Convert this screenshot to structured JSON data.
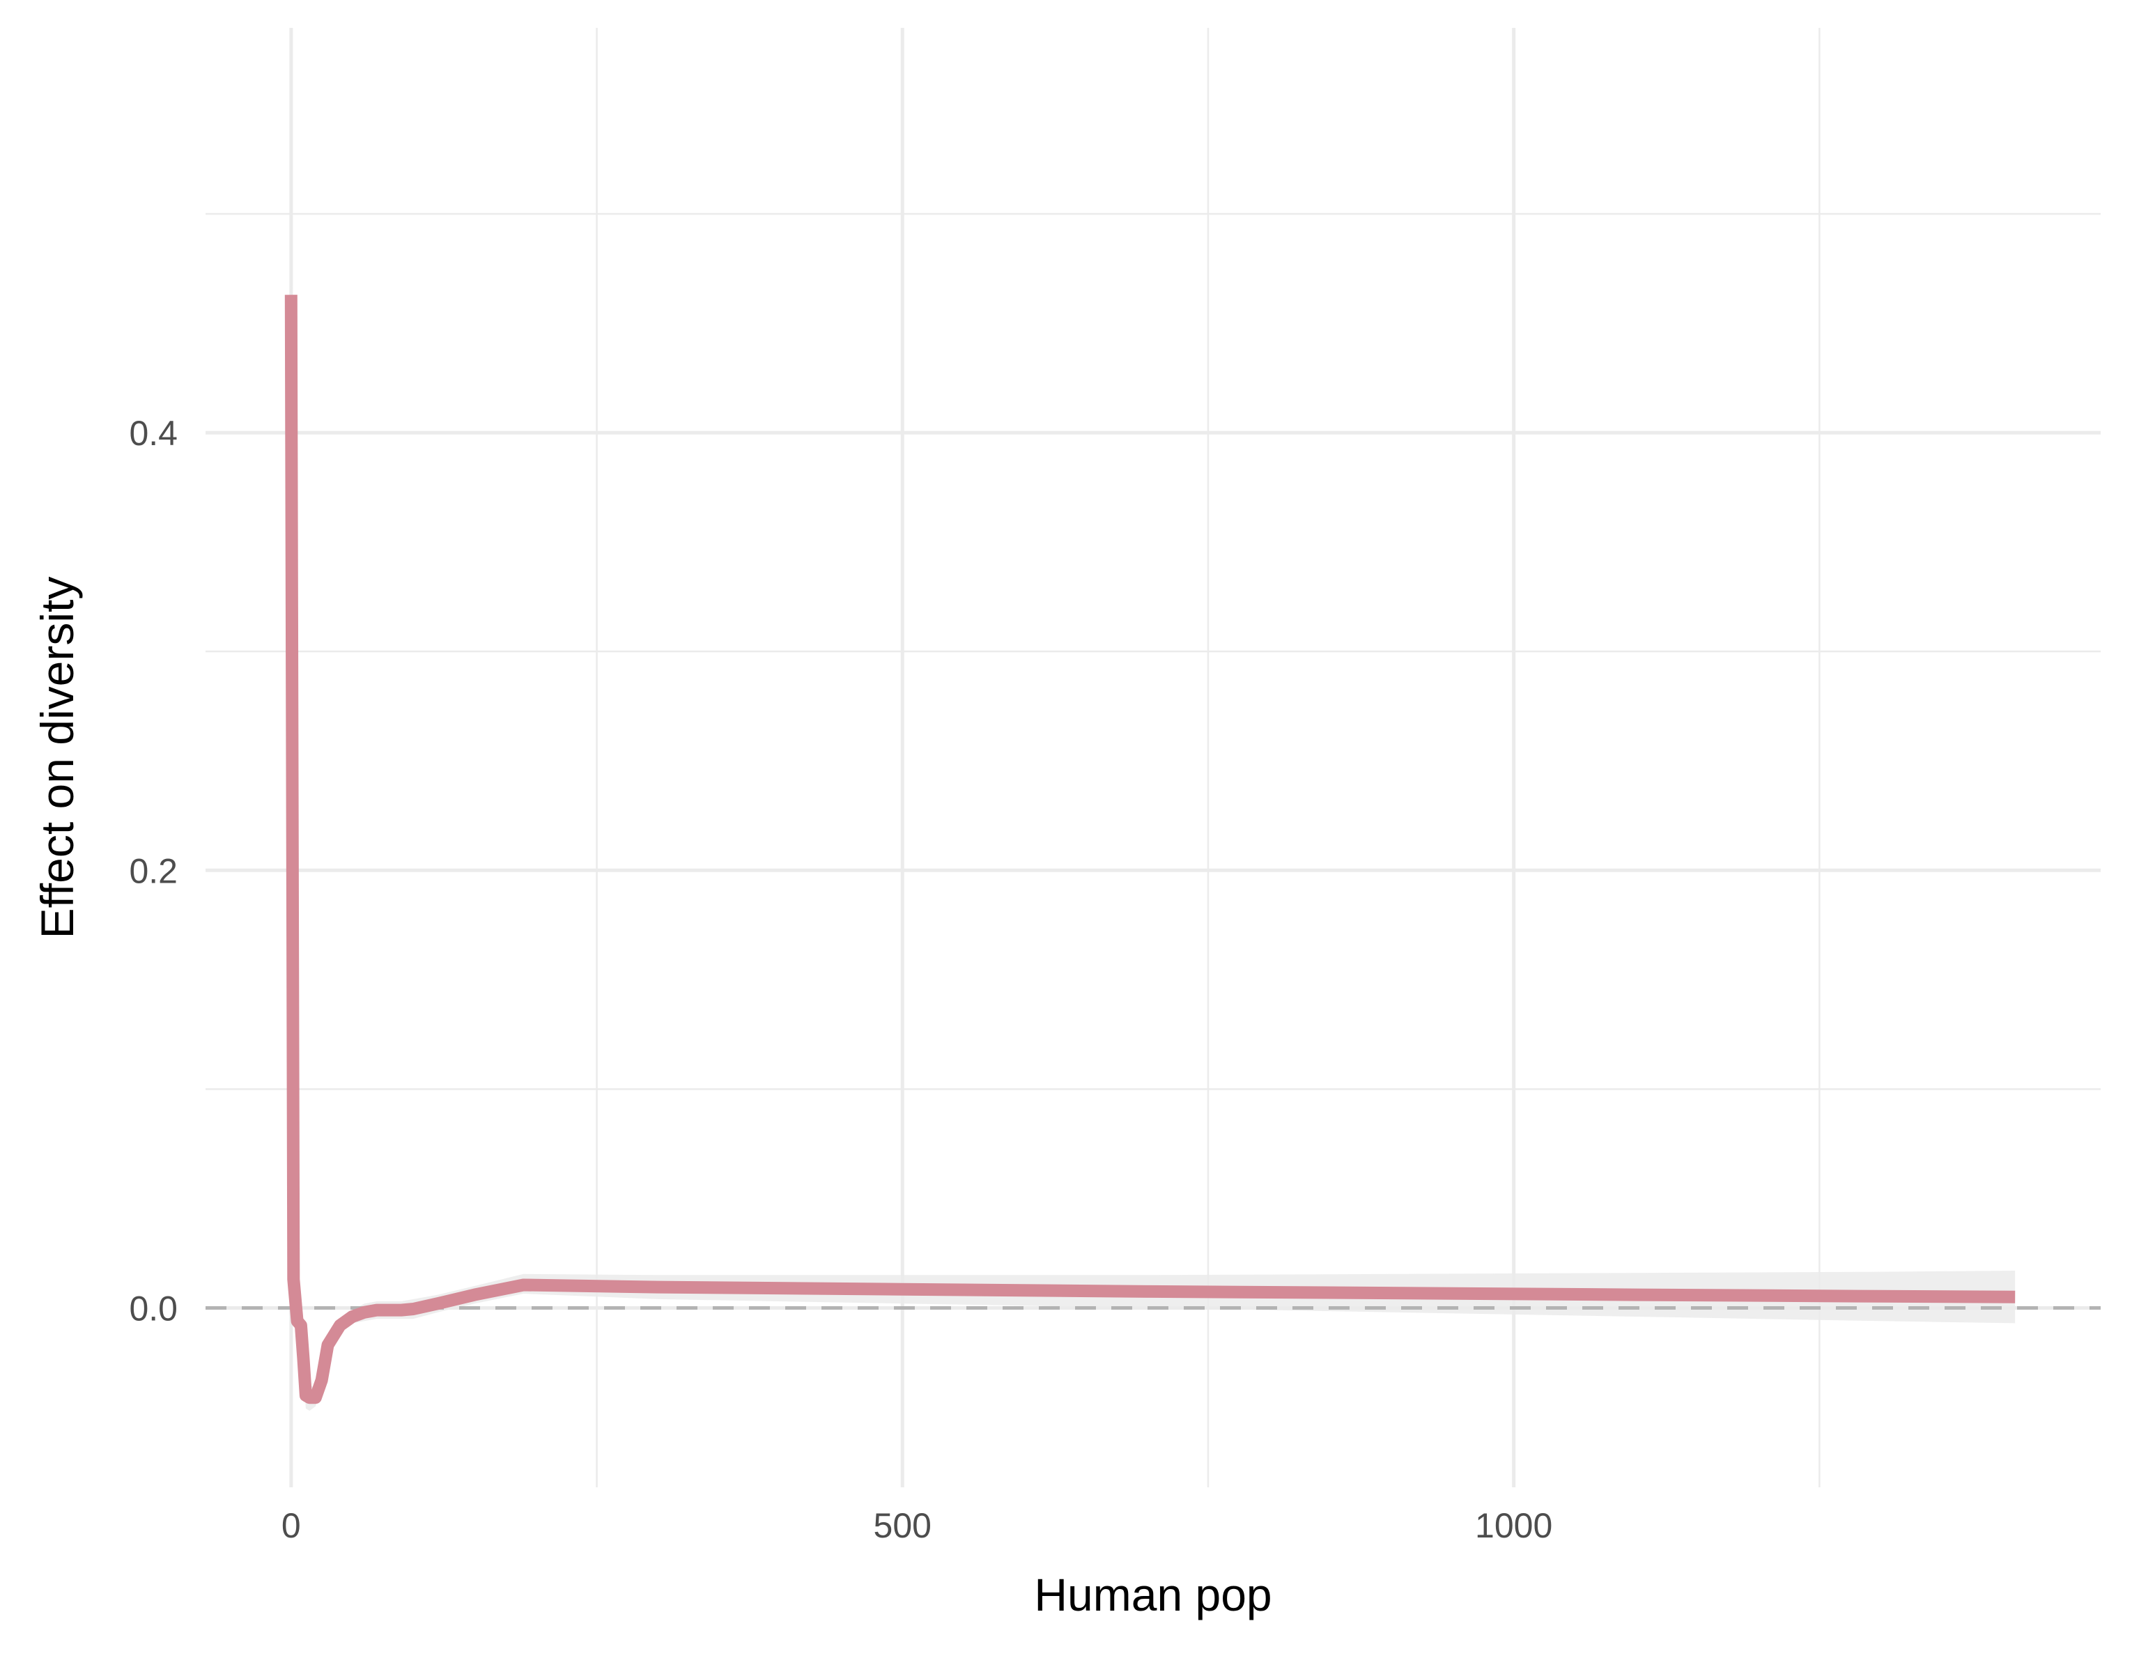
{
  "chart_data": {
    "type": "line",
    "title": "",
    "xlabel": "Human pop",
    "ylabel": "Effect on diversity",
    "xlim": [
      -70,
      1480
    ],
    "ylim": [
      -0.082,
      0.585
    ],
    "x_ticks": [
      0,
      500,
      1000
    ],
    "x_tick_labels": [
      "0",
      "500",
      "1000"
    ],
    "x_minor_ticks": [
      250,
      750,
      1250
    ],
    "y_ticks": [
      0.0,
      0.2,
      0.4
    ],
    "y_tick_labels": [
      "0.0",
      "0.2",
      "0.4"
    ],
    "y_minor_ticks": [
      0.1,
      0.3,
      0.5
    ],
    "grid": true,
    "legend": "none",
    "reference_line": {
      "y": 0.0,
      "style": "dashed",
      "color": "#b3b3b3"
    },
    "line_color": "#d48a96",
    "ribbon_color": "#ebebeb",
    "series": [
      {
        "x": [
          0,
          2,
          5,
          8,
          10,
          12,
          15,
          20,
          25,
          30,
          40,
          50,
          60,
          70,
          80,
          90,
          100,
          120,
          150,
          190,
          300,
          500,
          700,
          900,
          1100,
          1300,
          1410
        ],
        "y": [
          0.463,
          0.013,
          -0.006,
          -0.008,
          -0.023,
          -0.04,
          -0.041,
          -0.041,
          -0.033,
          -0.017,
          -0.008,
          -0.004,
          -0.002,
          -0.001,
          -0.001,
          -0.001,
          -0.0005,
          0.002,
          0.006,
          0.0105,
          0.0095,
          0.0085,
          0.0075,
          0.0068,
          0.006,
          0.0053,
          0.005
        ],
        "lower": [
          0.458,
          0.008,
          -0.009,
          -0.012,
          -0.028,
          -0.046,
          -0.047,
          -0.045,
          -0.036,
          -0.02,
          -0.011,
          -0.007,
          -0.006,
          -0.005,
          -0.005,
          -0.005,
          -0.005,
          -0.002,
          0.002,
          0.0065,
          0.004,
          0.002,
          0.0,
          -0.002,
          -0.004,
          -0.006,
          -0.007
        ],
        "upper": [
          0.468,
          0.018,
          -0.003,
          -0.004,
          -0.018,
          -0.034,
          -0.035,
          -0.037,
          -0.03,
          -0.014,
          -0.005,
          -0.001,
          0.002,
          0.003,
          0.003,
          0.003,
          0.004,
          0.006,
          0.01,
          0.0155,
          0.015,
          0.015,
          0.015,
          0.0155,
          0.016,
          0.0165,
          0.017
        ]
      }
    ]
  }
}
